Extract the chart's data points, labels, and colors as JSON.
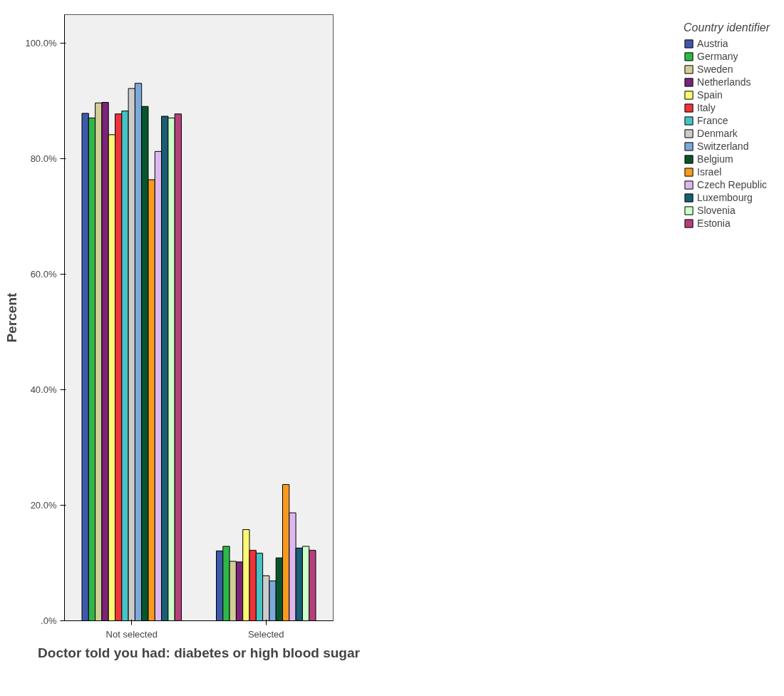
{
  "chart_data": {
    "type": "bar",
    "xlabel": "Doctor told you had: diabetes or high blood sugar",
    "ylabel": "Percent",
    "legend_title": "Country identifier",
    "legend": "right",
    "grid": false,
    "categories": [
      "Not selected",
      "Selected"
    ],
    "ylim": [
      0,
      105
    ],
    "yticks": [
      {
        "value": 0,
        "label": ".0%"
      },
      {
        "value": 20,
        "label": "20.0%"
      },
      {
        "value": 40,
        "label": "40.0%"
      },
      {
        "value": 60,
        "label": "60.0%"
      },
      {
        "value": 80,
        "label": "80.0%"
      },
      {
        "value": 100,
        "label": "100.0%"
      }
    ],
    "series": [
      {
        "name": "Austria",
        "color": "#3e58ac",
        "values": [
          87.9,
          12.1
        ]
      },
      {
        "name": "Germany",
        "color": "#2eb848",
        "values": [
          87.1,
          12.9
        ]
      },
      {
        "name": "Sweden",
        "color": "#d3ce97",
        "values": [
          89.7,
          10.3
        ]
      },
      {
        "name": "Netherlands",
        "color": "#7b2479",
        "values": [
          89.8,
          10.2
        ]
      },
      {
        "name": "Spain",
        "color": "#fbf873",
        "values": [
          84.2,
          15.8
        ]
      },
      {
        "name": "Italy",
        "color": "#ef3338",
        "values": [
          87.8,
          12.2
        ]
      },
      {
        "name": "France",
        "color": "#48c2c5",
        "values": [
          88.3,
          11.7
        ]
      },
      {
        "name": "Denmark",
        "color": "#cccccc",
        "values": [
          92.2,
          7.8
        ]
      },
      {
        "name": "Switzerland",
        "color": "#7ba9d9",
        "values": [
          93.1,
          6.9
        ]
      },
      {
        "name": "Belgium",
        "color": "#08552d",
        "values": [
          89.1,
          10.9
        ]
      },
      {
        "name": "Israel",
        "color": "#f89a1c",
        "values": [
          76.4,
          23.6
        ]
      },
      {
        "name": "Czech Republic",
        "color": "#ddb8f0",
        "values": [
          81.3,
          18.7
        ]
      },
      {
        "name": "Luxembourg",
        "color": "#1a5e74",
        "values": [
          87.4,
          12.6
        ]
      },
      {
        "name": "Slovenia",
        "color": "#ccfec9",
        "values": [
          87.1,
          12.9
        ]
      },
      {
        "name": "Estonia",
        "color": "#b73f7c",
        "values": [
          87.8,
          12.2
        ]
      }
    ]
  }
}
